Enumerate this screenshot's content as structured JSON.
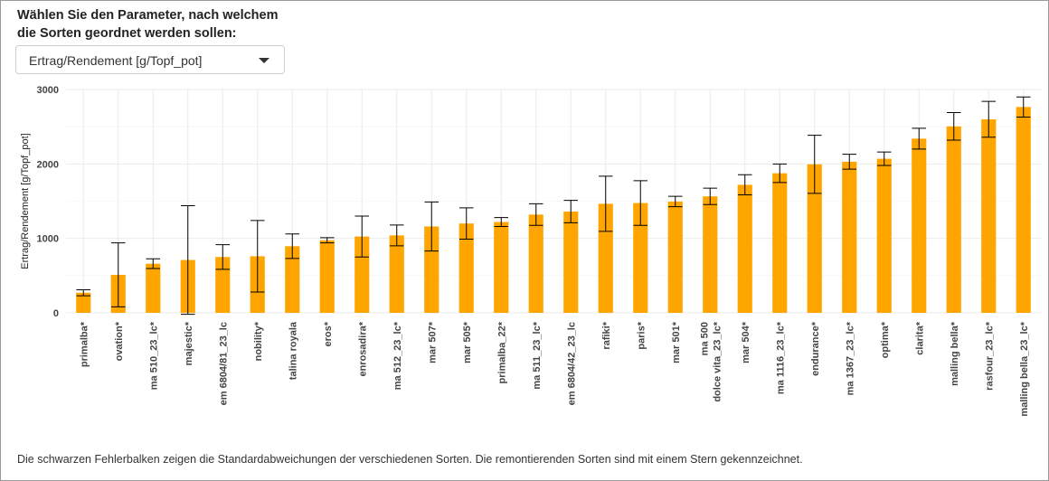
{
  "prompt": {
    "line1": "Wählen Sie den Parameter, nach welchem",
    "line2": "die Sorten geordnet werden sollen:"
  },
  "select": {
    "value": "Ertrag/Rendement [g/Topf_pot]"
  },
  "caption": "Die schwarzen Fehlerbalken zeigen die Standardabweichungen der verschiedenen Sorten. Die remontierenden Sorten sind mit einem Stern gekennzeichnet.",
  "colors": {
    "bar": "#FFA500",
    "grid": "#EBEBEB",
    "error": "#000000"
  },
  "chart_data": {
    "type": "bar",
    "ylabel": "Ertrag/Rendement [g/Topf_pot]",
    "xlabel": "",
    "ylim": [
      0,
      3000
    ],
    "yticks": [
      0,
      1000,
      2000,
      3000
    ],
    "grid": true,
    "categories": [
      "primalba*",
      "ovation*",
      "ma 510_23_lc*",
      "majestic*",
      "em 6804/81_23_lc",
      "nobility*",
      "talina royala",
      "eros*",
      "enrosadira*",
      "ma 512_23_lc*",
      "mar 507*",
      "mar 505*",
      "primalba_22*",
      "ma 511_23_lc*",
      "em 6804/42_23_lc",
      "rafiki*",
      "paris*",
      "mar 501*",
      "ma 500\ndolce vita_23_lc*",
      "mar 504*",
      "ma 1116_23_lc*",
      "endurance*",
      "ma 1367_23_lc*",
      "optima*",
      "clarita*",
      "malling bella*",
      "rasfour_23_lc*",
      "malling bella_23_lc*"
    ],
    "values": [
      270,
      510,
      660,
      710,
      750,
      760,
      895,
      975,
      1025,
      1040,
      1160,
      1200,
      1220,
      1320,
      1360,
      1465,
      1475,
      1495,
      1565,
      1720,
      1875,
      1995,
      2030,
      2070,
      2340,
      2505,
      2600,
      2765
    ],
    "sd": [
      40,
      430,
      65,
      730,
      165,
      480,
      165,
      35,
      275,
      140,
      330,
      210,
      60,
      145,
      150,
      370,
      300,
      70,
      110,
      135,
      125,
      390,
      100,
      90,
      140,
      185,
      240,
      135
    ]
  }
}
